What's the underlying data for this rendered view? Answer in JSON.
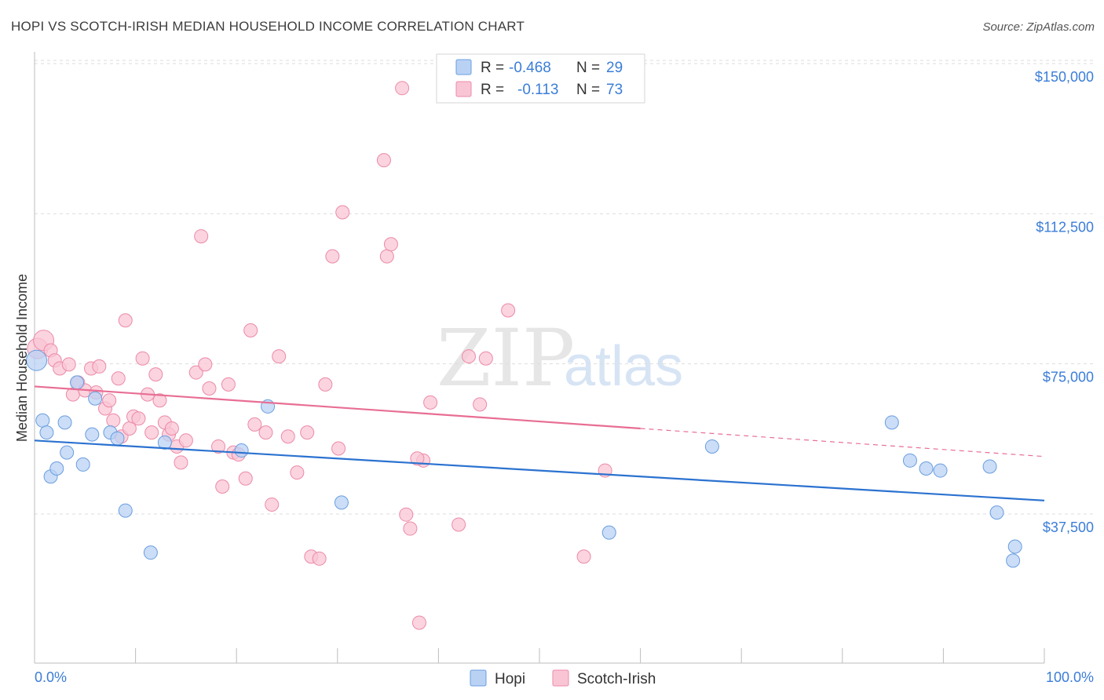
{
  "title": "HOPI VS SCOTCH-IRISH MEDIAN HOUSEHOLD INCOME CORRELATION CHART",
  "source": "Source: ZipAtlas.com",
  "watermark": {
    "zip": "ZIP",
    "atlas": "atlas"
  },
  "colors": {
    "hopi_fill": "#b9d2f4",
    "hopi_stroke": "#6a9ee0",
    "hopi_line": "#2b72d0",
    "scotch_fill": "#f9c5d4",
    "scotch_stroke": "#ec8aa8",
    "scotch_line": "#e86e94",
    "axis_text": "#3b7dd8",
    "grid": "#dddddd"
  },
  "legend": {
    "rows": [
      {
        "r_label": "R = ",
        "r_value": "-0.468",
        "n_label": "N = ",
        "n_value": "29",
        "series": "hopi"
      },
      {
        "r_label": "R = ",
        "r_value": "-0.113",
        "n_label": "N = ",
        "n_value": "73",
        "series": "scotch"
      }
    ]
  },
  "bottom_legend": [
    {
      "label": "Hopi",
      "series": "hopi"
    },
    {
      "label": "Scotch-Irish",
      "series": "scotch"
    }
  ],
  "chart_data": {
    "type": "scatter",
    "title": "HOPI VS SCOTCH-IRISH MEDIAN HOUSEHOLD INCOME CORRELATION CHART",
    "xlabel": "",
    "ylabel": "Median Household Income",
    "xlim": [
      0,
      100
    ],
    "ylim": [
      0,
      152500
    ],
    "x_tick_labels": [
      "0.0%",
      "100.0%"
    ],
    "y_ticks": [
      37500,
      75000,
      112500,
      150000
    ],
    "y_tick_labels": [
      "$37,500",
      "$75,000",
      "$112,500",
      "$150,000"
    ],
    "series": [
      {
        "name": "Hopi",
        "key": "hopi",
        "R": -0.468,
        "N": 29,
        "trend": {
          "x0": 0,
          "y0": 59000,
          "x1": 100,
          "y1": 44000
        },
        "points": [
          [
            0.2,
            79000
          ],
          [
            0.8,
            64000
          ],
          [
            1.2,
            61000
          ],
          [
            1.6,
            50000
          ],
          [
            2.2,
            52000
          ],
          [
            3.0,
            63500
          ],
          [
            3.2,
            56000
          ],
          [
            4.2,
            73500
          ],
          [
            4.8,
            53000
          ],
          [
            5.7,
            60500
          ],
          [
            6.0,
            69500
          ],
          [
            7.5,
            61000
          ],
          [
            8.2,
            59500
          ],
          [
            9.0,
            41500
          ],
          [
            11.5,
            31000
          ],
          [
            12.9,
            58500
          ],
          [
            20.5,
            56500
          ],
          [
            23.1,
            67500
          ],
          [
            30.4,
            43500
          ],
          [
            56.9,
            36000
          ],
          [
            67.1,
            57500
          ],
          [
            84.9,
            63500
          ],
          [
            86.7,
            54000
          ],
          [
            88.3,
            52000
          ],
          [
            89.7,
            51500
          ],
          [
            94.6,
            52500
          ],
          [
            95.3,
            41000
          ],
          [
            96.9,
            29000
          ],
          [
            97.1,
            32500
          ]
        ]
      },
      {
        "name": "Scotch-Irish",
        "key": "scotch",
        "R": -0.113,
        "N": 73,
        "trend": {
          "x0": 0,
          "y0": 72500,
          "x1": 60,
          "y1": 62000
        },
        "trend_dashed": {
          "x0": 60,
          "y0": 62000,
          "x1": 100,
          "y1": 55000
        },
        "points": [
          [
            0.3,
            82000
          ],
          [
            0.9,
            84000
          ],
          [
            1.6,
            81500
          ],
          [
            2.0,
            79000
          ],
          [
            2.5,
            77000
          ],
          [
            3.4,
            78000
          ],
          [
            3.8,
            70500
          ],
          [
            4.3,
            73500
          ],
          [
            5.0,
            71500
          ],
          [
            5.6,
            77000
          ],
          [
            6.1,
            71000
          ],
          [
            6.4,
            77500
          ],
          [
            7.0,
            67000
          ],
          [
            7.4,
            69000
          ],
          [
            7.8,
            64000
          ],
          [
            8.3,
            74500
          ],
          [
            8.6,
            60000
          ],
          [
            9.0,
            89000
          ],
          [
            9.4,
            62000
          ],
          [
            9.8,
            65000
          ],
          [
            10.3,
            64500
          ],
          [
            10.7,
            79500
          ],
          [
            11.2,
            70500
          ],
          [
            11.6,
            61000
          ],
          [
            12.0,
            75500
          ],
          [
            12.4,
            69000
          ],
          [
            12.9,
            63500
          ],
          [
            13.3,
            60500
          ],
          [
            13.6,
            62000
          ],
          [
            14.1,
            57500
          ],
          [
            14.5,
            53500
          ],
          [
            15.0,
            59000
          ],
          [
            16.0,
            76000
          ],
          [
            16.5,
            110000
          ],
          [
            16.9,
            78000
          ],
          [
            17.3,
            72000
          ],
          [
            18.2,
            57500
          ],
          [
            18.6,
            47500
          ],
          [
            19.2,
            73000
          ],
          [
            19.7,
            56000
          ],
          [
            20.2,
            55500
          ],
          [
            20.9,
            49500
          ],
          [
            21.4,
            86500
          ],
          [
            21.8,
            63000
          ],
          [
            22.9,
            61000
          ],
          [
            23.5,
            43000
          ],
          [
            24.2,
            80000
          ],
          [
            25.1,
            60000
          ],
          [
            26.0,
            51000
          ],
          [
            27.0,
            61000
          ],
          [
            27.4,
            30000
          ],
          [
            28.2,
            29500
          ],
          [
            28.8,
            73000
          ],
          [
            29.5,
            105000
          ],
          [
            30.1,
            57000
          ],
          [
            30.5,
            116000
          ],
          [
            34.6,
            129000
          ],
          [
            34.9,
            105000
          ],
          [
            35.3,
            108000
          ],
          [
            36.4,
            147000
          ],
          [
            36.8,
            40500
          ],
          [
            37.2,
            37000
          ],
          [
            38.1,
            13500
          ],
          [
            38.5,
            54000
          ],
          [
            39.2,
            68500
          ],
          [
            42.0,
            38000
          ],
          [
            43.0,
            80000
          ],
          [
            44.1,
            68000
          ],
          [
            44.7,
            79500
          ],
          [
            46.9,
            91500
          ],
          [
            54.4,
            30000
          ],
          [
            56.5,
            51500
          ],
          [
            37.9,
            54500
          ]
        ]
      }
    ]
  }
}
